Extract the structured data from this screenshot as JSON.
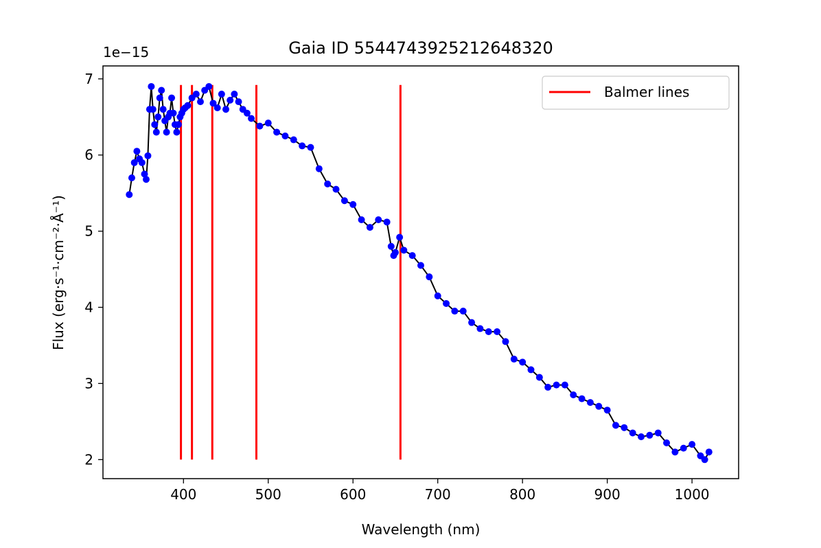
{
  "chart_data": {
    "type": "line",
    "title": "Gaia ID 5544743925212648320",
    "xlabel": "Wavelength (nm)",
    "ylabel": "Flux (erg·s⁻¹·cm⁻²·Å⁻¹)",
    "y_offset_label": "1e−15",
    "xlim": [
      305,
      1055
    ],
    "ylim": [
      1.75,
      7.17
    ],
    "xticks": [
      400,
      500,
      600,
      700,
      800,
      900,
      1000
    ],
    "yticks": [
      2,
      3,
      4,
      5,
      6,
      7
    ],
    "y_scale_exponent": -15,
    "grid": false,
    "legend_position": "top-right",
    "colors": {
      "line": "#000000",
      "marker": "#0000ff",
      "balmer": "#ff0000"
    },
    "series": [
      {
        "kind": "spectrum",
        "x": [
          336,
          339,
          342,
          345,
          348,
          351,
          354,
          356,
          358,
          360,
          362,
          364,
          366,
          368,
          370,
          372,
          374,
          376,
          378,
          380,
          382,
          384,
          386,
          388,
          390,
          392,
          394,
          396,
          398,
          400,
          402,
          405,
          410,
          415,
          420,
          425,
          430,
          435,
          440,
          445,
          450,
          455,
          460,
          465,
          470,
          475,
          480,
          490,
          500,
          510,
          520,
          530,
          540,
          550,
          560,
          570,
          580,
          590,
          600,
          610,
          620,
          630,
          640,
          645,
          648,
          650,
          655,
          660,
          670,
          680,
          690,
          700,
          710,
          720,
          730,
          740,
          750,
          760,
          770,
          780,
          790,
          800,
          810,
          820,
          830,
          840,
          850,
          860,
          870,
          880,
          890,
          900,
          910,
          920,
          930,
          940,
          950,
          960,
          970,
          980,
          990,
          1000,
          1010,
          1015,
          1020
        ],
        "y": [
          5.48,
          5.7,
          5.9,
          6.05,
          5.95,
          5.9,
          5.75,
          5.68,
          5.99,
          6.6,
          6.9,
          6.6,
          6.4,
          6.3,
          6.5,
          6.75,
          6.85,
          6.6,
          6.45,
          6.3,
          6.5,
          6.55,
          6.75,
          6.55,
          6.4,
          6.3,
          6.4,
          6.5,
          6.55,
          6.6,
          6.62,
          6.65,
          6.75,
          6.8,
          6.7,
          6.85,
          6.9,
          6.68,
          6.62,
          6.8,
          6.6,
          6.72,
          6.8,
          6.7,
          6.6,
          6.55,
          6.48,
          6.38,
          6.42,
          6.3,
          6.25,
          6.2,
          6.12,
          6.1,
          5.82,
          5.62,
          5.55,
          5.4,
          5.35,
          5.15,
          5.05,
          5.15,
          5.12,
          4.8,
          4.68,
          4.72,
          4.92,
          4.75,
          4.68,
          4.55,
          4.4,
          4.15,
          4.05,
          3.95,
          3.95,
          3.8,
          3.72,
          3.68,
          3.68,
          3.55,
          3.32,
          3.28,
          3.18,
          3.08,
          2.95,
          2.98,
          2.98,
          2.85,
          2.8,
          2.75,
          2.7,
          2.65,
          2.45,
          2.42,
          2.35,
          2.3,
          2.32,
          2.35,
          2.22,
          2.1,
          2.15,
          2.2,
          2.05,
          2.0,
          2.1
        ]
      }
    ],
    "balmer": {
      "name": "Balmer lines",
      "lines": [
        397,
        410,
        434,
        486,
        656
      ],
      "ymin": 2.0,
      "ymax": 6.92
    }
  }
}
